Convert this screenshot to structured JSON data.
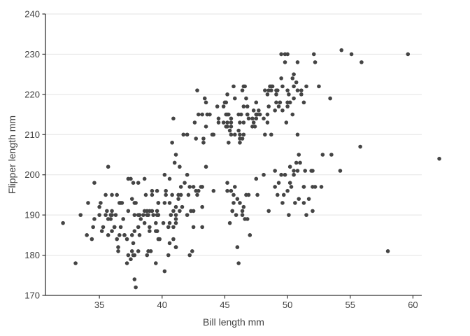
{
  "chart_data": {
    "type": "scatter",
    "title": "",
    "xlabel": "Bill length mm",
    "ylabel": "Flipper length mm",
    "xlim": [
      30.7,
      60.7
    ],
    "ylim": [
      170,
      240
    ],
    "x_ticks": [
      35,
      40,
      45,
      50,
      55,
      60
    ],
    "y_ticks": [
      170,
      180,
      190,
      200,
      210,
      220,
      230,
      240
    ],
    "grid": "horizontal-major-only",
    "legend": "none",
    "point_color": "#444444",
    "point_radius": 2.8,
    "grid_color": "#e3e3e3",
    "axis_color": "#333333",
    "text_color": "#404040",
    "background_color": "#ffffff",
    "points": [
      [
        39.1,
        181
      ],
      [
        39.5,
        186
      ],
      [
        40.3,
        195
      ],
      [
        36.7,
        193
      ],
      [
        39.3,
        190
      ],
      [
        38.9,
        181
      ],
      [
        39.2,
        195
      ],
      [
        34.1,
        193
      ],
      [
        42,
        190
      ],
      [
        37.8,
        186
      ],
      [
        37.8,
        180
      ],
      [
        41.1,
        182
      ],
      [
        38.6,
        191
      ],
      [
        34.6,
        198
      ],
      [
        36.6,
        185
      ],
      [
        38.7,
        195
      ],
      [
        42.5,
        197
      ],
      [
        34.4,
        184
      ],
      [
        46,
        194
      ],
      [
        37.8,
        174
      ],
      [
        37.7,
        180
      ],
      [
        35.9,
        189
      ],
      [
        38.2,
        185
      ],
      [
        38.8,
        180
      ],
      [
        35.3,
        187
      ],
      [
        40.6,
        183
      ],
      [
        40.5,
        187
      ],
      [
        37.9,
        172
      ],
      [
        40.5,
        180
      ],
      [
        39.5,
        178
      ],
      [
        37.2,
        178
      ],
      [
        39.5,
        188
      ],
      [
        40.9,
        184
      ],
      [
        36.4,
        195
      ],
      [
        39.2,
        196
      ],
      [
        38.8,
        190
      ],
      [
        42.2,
        180
      ],
      [
        37.6,
        181
      ],
      [
        39.8,
        184
      ],
      [
        36.5,
        182
      ],
      [
        40.8,
        195
      ],
      [
        36,
        186
      ],
      [
        44.1,
        196
      ],
      [
        37,
        185
      ],
      [
        39.6,
        190
      ],
      [
        41.1,
        182
      ],
      [
        37.5,
        179
      ],
      [
        36,
        190
      ],
      [
        42.3,
        191
      ],
      [
        39.6,
        186
      ],
      [
        40.1,
        188
      ],
      [
        35,
        190
      ],
      [
        42,
        200
      ],
      [
        34.5,
        187
      ],
      [
        41.4,
        191
      ],
      [
        39,
        186
      ],
      [
        40.6,
        193
      ],
      [
        36.5,
        181
      ],
      [
        37.6,
        194
      ],
      [
        35.7,
        185
      ],
      [
        41.3,
        195
      ],
      [
        37.6,
        185
      ],
      [
        41.1,
        192
      ],
      [
        36.4,
        184
      ],
      [
        41.6,
        192
      ],
      [
        35.5,
        195
      ],
      [
        41.1,
        188
      ],
      [
        35.9,
        190
      ],
      [
        41.8,
        198
      ],
      [
        33.5,
        190
      ],
      [
        39.7,
        190
      ],
      [
        39.6,
        196
      ],
      [
        45.8,
        197
      ],
      [
        35.5,
        190
      ],
      [
        42.8,
        195
      ],
      [
        40.9,
        191
      ],
      [
        37.2,
        184
      ],
      [
        36.2,
        187
      ],
      [
        42.1,
        195
      ],
      [
        34.6,
        189
      ],
      [
        42.9,
        196
      ],
      [
        36.7,
        187
      ],
      [
        35.1,
        193
      ],
      [
        37.3,
        191
      ],
      [
        41.3,
        194
      ],
      [
        36.3,
        190
      ],
      [
        36.9,
        189
      ],
      [
        38.3,
        189
      ],
      [
        38.9,
        190
      ],
      [
        35.7,
        202
      ],
      [
        41.1,
        205
      ],
      [
        34,
        185
      ],
      [
        39.6,
        186
      ],
      [
        36.2,
        187
      ],
      [
        40.8,
        208
      ],
      [
        38.1,
        190
      ],
      [
        40.3,
        196
      ],
      [
        33.1,
        178
      ],
      [
        43.2,
        192
      ],
      [
        35,
        192
      ],
      [
        41,
        203
      ],
      [
        37.7,
        183
      ],
      [
        37.8,
        190
      ],
      [
        37.9,
        193
      ],
      [
        39.7,
        184
      ],
      [
        38.6,
        199
      ],
      [
        38.2,
        190
      ],
      [
        38.1,
        181
      ],
      [
        43.2,
        197
      ],
      [
        38.1,
        198
      ],
      [
        45.6,
        191
      ],
      [
        39.7,
        193
      ],
      [
        42.2,
        197
      ],
      [
        39.6,
        191
      ],
      [
        42.7,
        196
      ],
      [
        38.6,
        188
      ],
      [
        37.3,
        199
      ],
      [
        35.7,
        189
      ],
      [
        41.1,
        189
      ],
      [
        36.2,
        187
      ],
      [
        37.7,
        198
      ],
      [
        40.2,
        176
      ],
      [
        41.4,
        202
      ],
      [
        35.2,
        186
      ],
      [
        40.6,
        199
      ],
      [
        38.8,
        191
      ],
      [
        41.5,
        195
      ],
      [
        39,
        191
      ],
      [
        44.1,
        210
      ],
      [
        38.5,
        190
      ],
      [
        43.1,
        197
      ],
      [
        36.8,
        193
      ],
      [
        37.5,
        199
      ],
      [
        38.1,
        187
      ],
      [
        41.1,
        190
      ],
      [
        35.6,
        191
      ],
      [
        40.2,
        200
      ],
      [
        37,
        185
      ],
      [
        39.7,
        193
      ],
      [
        40.2,
        193
      ],
      [
        40.6,
        188
      ],
      [
        32.1,
        188
      ],
      [
        40.7,
        190
      ],
      [
        37.3,
        180
      ],
      [
        39,
        187
      ],
      [
        39.2,
        191
      ],
      [
        36.6,
        193
      ],
      [
        36,
        195
      ],
      [
        37.8,
        193
      ],
      [
        36,
        191
      ],
      [
        41.5,
        197
      ],
      [
        46.1,
        211
      ],
      [
        50,
        230
      ],
      [
        48.7,
        210
      ],
      [
        50,
        218
      ],
      [
        47.6,
        215
      ],
      [
        46.5,
        210
      ],
      [
        45.4,
        211
      ],
      [
        46.7,
        219
      ],
      [
        43.3,
        209
      ],
      [
        46.8,
        215
      ],
      [
        40.9,
        214
      ],
      [
        49,
        216
      ],
      [
        45.5,
        214
      ],
      [
        48.4,
        213
      ],
      [
        45.8,
        210
      ],
      [
        49.3,
        217
      ],
      [
        42,
        210
      ],
      [
        49.2,
        221
      ],
      [
        46.2,
        209
      ],
      [
        48.7,
        222
      ],
      [
        50.2,
        218
      ],
      [
        45.1,
        215
      ],
      [
        46.5,
        213
      ],
      [
        46.3,
        215
      ],
      [
        42.9,
        215
      ],
      [
        46.1,
        215
      ],
      [
        44.5,
        213
      ],
      [
        47.8,
        215
      ],
      [
        48.2,
        210
      ],
      [
        50,
        217
      ],
      [
        47.3,
        216
      ],
      [
        42.8,
        221
      ],
      [
        45.1,
        212
      ],
      [
        59.6,
        230
      ],
      [
        49.1,
        218
      ],
      [
        48.4,
        215
      ],
      [
        42.6,
        213
      ],
      [
        44.4,
        217
      ],
      [
        44,
        210
      ],
      [
        48.7,
        221
      ],
      [
        42.7,
        209
      ],
      [
        49.6,
        216
      ],
      [
        45.3,
        208
      ],
      [
        49.6,
        222
      ],
      [
        50.5,
        219
      ],
      [
        43.6,
        215
      ],
      [
        45.5,
        210
      ],
      [
        50.5,
        225
      ],
      [
        44.9,
        217
      ],
      [
        45.2,
        220
      ],
      [
        46.6,
        222
      ],
      [
        48.5,
        217
      ],
      [
        45.1,
        218
      ],
      [
        50.1,
        220
      ],
      [
        46.5,
        222
      ],
      [
        45,
        218
      ],
      [
        43.8,
        215
      ],
      [
        45.5,
        213
      ],
      [
        43.2,
        215
      ],
      [
        50.4,
        215
      ],
      [
        45.3,
        215
      ],
      [
        46.2,
        210
      ],
      [
        45.7,
        222
      ],
      [
        54.3,
        231
      ],
      [
        45.8,
        219
      ],
      [
        49.8,
        228
      ],
      [
        46.2,
        208
      ],
      [
        49.5,
        230
      ],
      [
        43.5,
        218
      ],
      [
        50.7,
        223
      ],
      [
        47.7,
        216
      ],
      [
        46.4,
        221
      ],
      [
        48.2,
        221
      ],
      [
        46.5,
        217
      ],
      [
        46.4,
        209
      ],
      [
        48.6,
        222
      ],
      [
        47.5,
        218
      ],
      [
        51.1,
        220
      ],
      [
        45.2,
        213
      ],
      [
        45.2,
        215
      ],
      [
        49.1,
        220
      ],
      [
        52.5,
        222
      ],
      [
        47.4,
        212
      ],
      [
        50,
        221
      ],
      [
        44.9,
        213
      ],
      [
        50.8,
        221
      ],
      [
        43.4,
        219
      ],
      [
        51.3,
        218
      ],
      [
        47.5,
        215
      ],
      [
        52.1,
        230
      ],
      [
        47.5,
        214
      ],
      [
        52.2,
        228
      ],
      [
        45.5,
        212
      ],
      [
        49.5,
        224
      ],
      [
        44.5,
        214
      ],
      [
        50.8,
        228
      ],
      [
        49.4,
        218
      ],
      [
        46.9,
        214
      ],
      [
        48.4,
        220
      ],
      [
        51.1,
        221
      ],
      [
        48.5,
        221
      ],
      [
        55.9,
        228
      ],
      [
        47.2,
        214
      ],
      [
        49.1,
        221
      ],
      [
        47.3,
        213
      ],
      [
        46.8,
        215
      ],
      [
        41.7,
        210
      ],
      [
        53.4,
        219
      ],
      [
        43.3,
        208
      ],
      [
        48.1,
        214
      ],
      [
        50.5,
        222
      ],
      [
        49.8,
        230
      ],
      [
        43.5,
        212
      ],
      [
        51.5,
        222
      ],
      [
        46.2,
        213
      ],
      [
        55.1,
        230
      ],
      [
        48.8,
        222
      ],
      [
        47.2,
        212
      ],
      [
        46.8,
        217
      ],
      [
        50.4,
        224
      ],
      [
        45.2,
        212
      ],
      [
        49.9,
        213
      ],
      [
        46.5,
        192
      ],
      [
        50,
        196
      ],
      [
        51.3,
        193
      ],
      [
        45.4,
        188
      ],
      [
        52.7,
        197
      ],
      [
        45.2,
        198
      ],
      [
        46.1,
        178
      ],
      [
        51.3,
        197
      ],
      [
        46,
        182
      ],
      [
        51.3,
        197
      ],
      [
        46.6,
        189
      ],
      [
        51.7,
        194
      ],
      [
        47,
        185
      ],
      [
        52,
        201
      ],
      [
        45.9,
        190
      ],
      [
        50.5,
        201
      ],
      [
        50.3,
        197
      ],
      [
        58,
        181
      ],
      [
        46.4,
        190
      ],
      [
        49.2,
        195
      ],
      [
        42.4,
        181
      ],
      [
        48.5,
        191
      ],
      [
        43.2,
        187
      ],
      [
        50.6,
        193
      ],
      [
        46.7,
        195
      ],
      [
        52,
        197
      ],
      [
        50.5,
        200
      ],
      [
        49.5,
        200
      ],
      [
        46.4,
        191
      ],
      [
        52.8,
        205
      ],
      [
        40.9,
        187
      ],
      [
        54.2,
        201
      ],
      [
        42.5,
        187
      ],
      [
        51,
        203
      ],
      [
        49.7,
        195
      ],
      [
        47.5,
        199
      ],
      [
        47.6,
        195
      ],
      [
        52,
        191
      ],
      [
        46.9,
        195
      ],
      [
        53.5,
        205
      ],
      [
        49,
        197
      ],
      [
        46.2,
        193
      ],
      [
        50.9,
        205
      ],
      [
        45.5,
        196
      ],
      [
        50.9,
        194
      ],
      [
        50.8,
        201
      ],
      [
        50.1,
        190
      ],
      [
        49,
        201
      ],
      [
        51.5,
        190
      ],
      [
        49.8,
        200
      ],
      [
        48.1,
        200
      ],
      [
        51.4,
        201
      ],
      [
        45.7,
        193
      ],
      [
        50.7,
        203
      ],
      [
        42.5,
        191
      ],
      [
        52.2,
        197
      ],
      [
        45.2,
        196
      ],
      [
        49.3,
        198
      ],
      [
        50.2,
        202
      ],
      [
        45.6,
        191
      ],
      [
        51.9,
        201
      ],
      [
        46.8,
        189
      ],
      [
        45.7,
        195
      ],
      [
        55.8,
        207
      ],
      [
        43.5,
        202
      ],
      [
        49.6,
        193
      ],
      [
        50.8,
        210
      ],
      [
        50.2,
        198
      ],
      [
        62.1,
        204
      ]
    ]
  }
}
